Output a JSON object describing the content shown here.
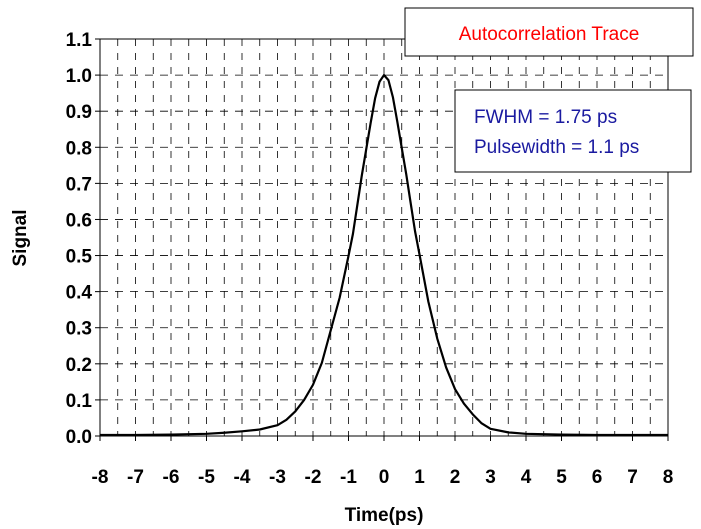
{
  "chart_data": {
    "type": "line",
    "title": "Autocorrelation Trace",
    "xlabel": "Time(ps)",
    "ylabel": "Signal",
    "xlim": [
      -8,
      8
    ],
    "ylim": [
      0,
      1.1
    ],
    "xticks": [
      "-8",
      "-7",
      "-6",
      "-5",
      "-4",
      "-3",
      "-2",
      "-1",
      "0",
      "1",
      "2",
      "3",
      "4",
      "5",
      "6",
      "7",
      "8"
    ],
    "yticks": [
      "0.0",
      "0.1",
      "0.2",
      "0.3",
      "0.4",
      "0.5",
      "0.6",
      "0.7",
      "0.8",
      "0.9",
      "1.0",
      "1.1"
    ],
    "grid": true,
    "annotations": [
      "FWHM = 1.75 ps",
      "Pulsewidth = 1.1 ps"
    ],
    "line_color": "#000000",
    "title_color": "#ff0000",
    "annotation_color": "#1a1aa0",
    "series": [
      {
        "x": [
          -8,
          -7,
          -6,
          -5,
          -4.5,
          -4,
          -3.5,
          -3,
          -2.75,
          -2.5,
          -2.25,
          -2,
          -1.75,
          -1.5,
          -1.25,
          -1,
          -0.875,
          -0.75,
          -0.625,
          -0.5,
          -0.375,
          -0.25,
          -0.125,
          0,
          0.125,
          0.25,
          0.375,
          0.5,
          0.625,
          0.75,
          0.875,
          1,
          1.25,
          1.5,
          1.75,
          2,
          2.25,
          2.5,
          2.75,
          3,
          3.5,
          4,
          4.5,
          5,
          6,
          7,
          8
        ],
        "y": [
          0.003,
          0.003,
          0.004,
          0.006,
          0.009,
          0.013,
          0.018,
          0.03,
          0.045,
          0.068,
          0.1,
          0.142,
          0.203,
          0.293,
          0.383,
          0.499,
          0.56,
          0.641,
          0.722,
          0.795,
          0.868,
          0.936,
          0.982,
          1.0,
          0.986,
          0.939,
          0.871,
          0.798,
          0.726,
          0.646,
          0.567,
          0.503,
          0.372,
          0.27,
          0.19,
          0.13,
          0.09,
          0.06,
          0.035,
          0.02,
          0.01,
          0.006,
          0.005,
          0.004,
          0.003,
          0.003,
          0.003
        ]
      }
    ]
  }
}
